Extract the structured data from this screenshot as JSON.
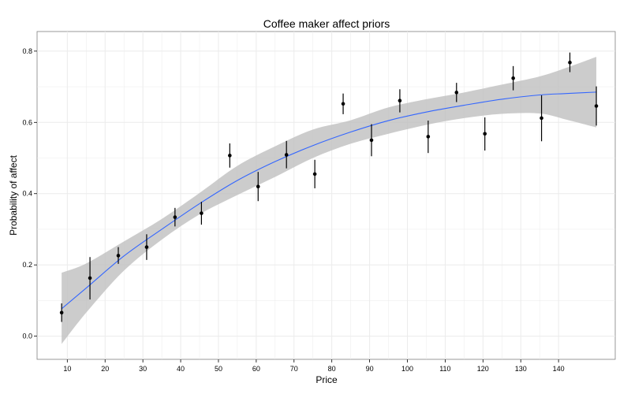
{
  "chart_data": {
    "type": "scatter",
    "title": "Coffee maker affect priors",
    "xlabel": "Price",
    "ylabel": "Probability of affect",
    "xlim": [
      2,
      155
    ],
    "ylim": [
      -0.065,
      0.855
    ],
    "xticks": [
      10,
      20,
      30,
      40,
      50,
      60,
      70,
      80,
      90,
      100,
      110,
      120,
      130,
      140
    ],
    "yticks": [
      0.0,
      0.2,
      0.4,
      0.6,
      0.8
    ],
    "ytick_labels": [
      "0.0",
      "0.2",
      "0.4",
      "0.6",
      "0.8"
    ],
    "grid": true,
    "colors": {
      "line": "#3366ff",
      "band": "#bfbfbf",
      "grid": "#ebebeb",
      "point": "#000000"
    },
    "points": [
      {
        "x": 8.5,
        "y": 0.066,
        "lo": 0.04,
        "hi": 0.092
      },
      {
        "x": 16.0,
        "y": 0.163,
        "lo": 0.103,
        "hi": 0.222
      },
      {
        "x": 23.5,
        "y": 0.226,
        "lo": 0.203,
        "hi": 0.25
      },
      {
        "x": 31.0,
        "y": 0.25,
        "lo": 0.214,
        "hi": 0.286
      },
      {
        "x": 38.5,
        "y": 0.334,
        "lo": 0.308,
        "hi": 0.36
      },
      {
        "x": 45.5,
        "y": 0.345,
        "lo": 0.313,
        "hi": 0.377
      },
      {
        "x": 53.0,
        "y": 0.507,
        "lo": 0.473,
        "hi": 0.541
      },
      {
        "x": 60.5,
        "y": 0.42,
        "lo": 0.379,
        "hi": 0.461
      },
      {
        "x": 68.0,
        "y": 0.509,
        "lo": 0.471,
        "hi": 0.548
      },
      {
        "x": 75.5,
        "y": 0.455,
        "lo": 0.415,
        "hi": 0.495
      },
      {
        "x": 83.0,
        "y": 0.652,
        "lo": 0.623,
        "hi": 0.681
      },
      {
        "x": 90.5,
        "y": 0.55,
        "lo": 0.505,
        "hi": 0.595
      },
      {
        "x": 98.0,
        "y": 0.661,
        "lo": 0.628,
        "hi": 0.693
      },
      {
        "x": 105.5,
        "y": 0.56,
        "lo": 0.514,
        "hi": 0.605
      },
      {
        "x": 113.0,
        "y": 0.684,
        "lo": 0.657,
        "hi": 0.711
      },
      {
        "x": 120.5,
        "y": 0.568,
        "lo": 0.521,
        "hi": 0.614
      },
      {
        "x": 128.0,
        "y": 0.724,
        "lo": 0.69,
        "hi": 0.758
      },
      {
        "x": 135.5,
        "y": 0.612,
        "lo": 0.547,
        "hi": 0.676
      },
      {
        "x": 143.0,
        "y": 0.768,
        "lo": 0.741,
        "hi": 0.796
      },
      {
        "x": 150.0,
        "y": 0.646,
        "lo": 0.591,
        "hi": 0.701
      }
    ],
    "smooth": {
      "x": [
        8.5,
        15,
        25,
        35,
        45,
        55,
        65,
        75,
        85,
        95,
        105,
        115,
        125,
        135,
        142,
        150
      ],
      "y": [
        0.077,
        0.135,
        0.225,
        0.3,
        0.372,
        0.437,
        0.49,
        0.535,
        0.573,
        0.605,
        0.629,
        0.648,
        0.665,
        0.677,
        0.681,
        0.685
      ],
      "lo": [
        -0.022,
        0.066,
        0.184,
        0.271,
        0.342,
        0.396,
        0.447,
        0.5,
        0.54,
        0.568,
        0.593,
        0.612,
        0.624,
        0.625,
        0.608,
        0.586
      ],
      "hi": [
        0.178,
        0.204,
        0.266,
        0.329,
        0.402,
        0.478,
        0.533,
        0.58,
        0.606,
        0.642,
        0.665,
        0.684,
        0.706,
        0.729,
        0.753,
        0.784
      ]
    }
  }
}
